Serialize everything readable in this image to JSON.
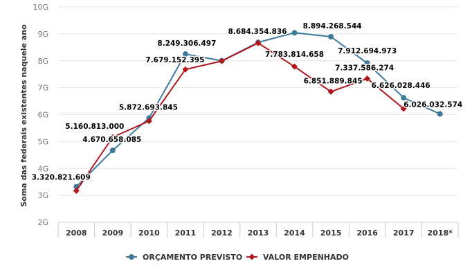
{
  "chart_data": {
    "type": "line",
    "ylabel": "Soma das federais existentes naquele ano",
    "y_ticks": [
      "2G",
      "3G",
      "4G",
      "5G",
      "6G",
      "7G",
      "8G",
      "9G",
      "10G"
    ],
    "ylim": [
      2000000000,
      10000000000
    ],
    "categories": [
      "2008",
      "2009",
      "2010",
      "2011",
      "2012",
      "2013",
      "2014",
      "2015",
      "2016",
      "2017",
      "2018*"
    ],
    "grid": true,
    "legend_position": "bottom-center",
    "series": [
      {
        "name": "ORÇAMENTO PREVISTO",
        "color": "#3d7a99",
        "marker": "circle",
        "values": [
          3320821609,
          4670658085,
          5872693845,
          8249306497,
          8000000000,
          8684354836,
          9040000000,
          8894268544,
          7912694973,
          6626028446,
          6026032574
        ],
        "labels": [
          "3.320.821.609",
          "4.670.658.085",
          "5.872.693.845",
          "8.249.306.497",
          null,
          "8.684.354.836",
          null,
          "8.894.268.544",
          "7.912.694.973",
          "6.626.028.446",
          "6.026.032.574"
        ]
      },
      {
        "name": "VALOR EMPENHADO",
        "color": "#b1161c",
        "marker": "diamond",
        "values": [
          3170000000,
          5160813000,
          5760000000,
          7679152395,
          7990000000,
          8660000000,
          7783814658,
          6851889845,
          7337586274,
          6220000000,
          null
        ],
        "labels": [
          null,
          "5.160.813.000",
          null,
          "7.679.152.395",
          null,
          null,
          "7.783.814.658",
          "6.851.889.845",
          "7.337.586.274",
          null,
          null
        ]
      }
    ]
  }
}
